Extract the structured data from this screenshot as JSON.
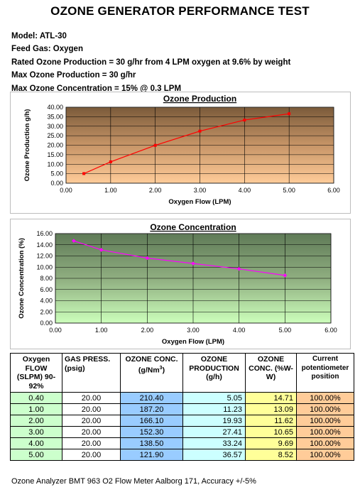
{
  "title": "OZONE GENERATOR PERFORMANCE TEST",
  "specs": [
    "Model: ATL-30",
    "Feed Gas: Oxygen",
    "Rated Ozone Production = 30 g/hr from 4 LPM oxygen at 9.6% by weight",
    "Max Ozone Production = 30 g/hr",
    "Max Ozone Concentration = 15% @ 0.3 LPM"
  ],
  "chart_data": [
    {
      "type": "line",
      "title": "Ozone Production",
      "xlabel": "Oxygen Flow (LPM)",
      "ylabel": "Ozone Production g/h)",
      "xlim": [
        0,
        6
      ],
      "ylim": [
        0,
        40
      ],
      "xticks": [
        "0.00",
        "1.00",
        "2.00",
        "3.00",
        "4.00",
        "5.00",
        "6.00"
      ],
      "yticks": [
        "0.00",
        "5.00",
        "10.00",
        "15.00",
        "20.00",
        "25.00",
        "30.00",
        "35.00",
        "40.00"
      ],
      "grid": true,
      "background": "brown-to-orange gradient",
      "series": [
        {
          "color": "#ff0000",
          "x": [
            0.4,
            1.0,
            2.0,
            3.0,
            4.0,
            5.0
          ],
          "y": [
            5.05,
            11.23,
            19.93,
            27.41,
            33.24,
            36.57
          ]
        }
      ]
    },
    {
      "type": "line",
      "title": "Ozone Concentration",
      "xlabel": "Oxygen Flow (LPM)",
      "ylabel": "Ozone Concentration (%)",
      "xlim": [
        0,
        6
      ],
      "ylim": [
        0,
        16
      ],
      "xticks": [
        "0.00",
        "1.00",
        "2.00",
        "3.00",
        "4.00",
        "5.00",
        "6.00"
      ],
      "yticks": [
        "0.00",
        "2.00",
        "4.00",
        "6.00",
        "8.00",
        "10.00",
        "12.00",
        "14.00",
        "16.00"
      ],
      "grid": true,
      "background": "dark-green-to-light-green gradient",
      "series": [
        {
          "color": "#ff00ff",
          "x": [
            0.4,
            1.0,
            2.0,
            3.0,
            4.0,
            5.0
          ],
          "y": [
            14.71,
            13.09,
            11.62,
            10.65,
            9.69,
            8.52
          ]
        }
      ]
    }
  ],
  "table": {
    "headers": {
      "flow": "Oxygen FLOW (SLPM) 90-92%",
      "press": "GAS PRESS. (psig)",
      "conc": "OZONE CONC. (g/Nm",
      "conc_sup": "3",
      "conc_end": ")",
      "prod": "OZONE PRODUCTION (g/h)",
      "wt": "OZONE CONC. (%W-W)",
      "pot": "Current potentiometer position"
    },
    "rows": [
      {
        "flow": "0.40",
        "press": "20.00",
        "conc": "210.40",
        "prod": "5.05",
        "wt": "14.71",
        "pot": "100.00%"
      },
      {
        "flow": "1.00",
        "press": "20.00",
        "conc": "187.20",
        "prod": "11.23",
        "wt": "13.09",
        "pot": "100.00%"
      },
      {
        "flow": "2.00",
        "press": "20.00",
        "conc": "166.10",
        "prod": "19.93",
        "wt": "11.62",
        "pot": "100.00%"
      },
      {
        "flow": "3.00",
        "press": "20.00",
        "conc": "152.30",
        "prod": "27.41",
        "wt": "10.65",
        "pot": "100.00%"
      },
      {
        "flow": "4.00",
        "press": "20.00",
        "conc": "138.50",
        "prod": "33.24",
        "wt": "9.69",
        "pot": "100.00%"
      },
      {
        "flow": "5.00",
        "press": "20.00",
        "conc": "121.90",
        "prod": "36.57",
        "wt": "8.52",
        "pot": "100.00%"
      }
    ]
  },
  "footer": "Ozone Analyzer BMT 963 O2 Flow Meter Aalborg 171, Accuracy +/-5%"
}
